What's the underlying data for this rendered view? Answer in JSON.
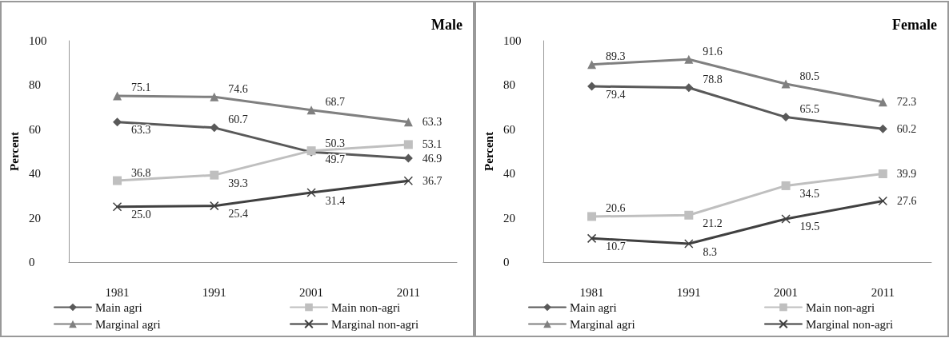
{
  "chart_data": [
    {
      "type": "line",
      "title": "Male",
      "ylabel": "Percent",
      "categories": [
        "1981",
        "1991",
        "2001",
        "2011"
      ],
      "ylim": [
        0,
        100
      ],
      "yticks": [
        0,
        20,
        40,
        60,
        80,
        100
      ],
      "grid": false,
      "legend": "bottom",
      "data_labels": true,
      "line_style": "solid",
      "series": [
        {
          "name": "Main agri",
          "color": "#595959",
          "marker": "diamond",
          "values": [
            63.3,
            60.7,
            49.7,
            46.9
          ]
        },
        {
          "name": "Main non-agri",
          "color": "#bfbfbf",
          "marker": "square",
          "values": [
            36.8,
            39.3,
            50.3,
            53.1
          ]
        },
        {
          "name": "Marginal agri",
          "color": "#808080",
          "marker": "triangle",
          "values": [
            75.1,
            74.6,
            68.7,
            63.3
          ]
        },
        {
          "name": "Marginal non-agri",
          "color": "#404040",
          "marker": "cross",
          "values": [
            25.0,
            25.4,
            31.4,
            36.7
          ],
          "value_labels": [
            "25.0",
            "25.4",
            "31.4",
            "36.7"
          ]
        }
      ]
    },
    {
      "type": "line",
      "title": "Female",
      "ylabel": "Percent",
      "categories": [
        "1981",
        "1991",
        "2001",
        "2011"
      ],
      "ylim": [
        0,
        100
      ],
      "yticks": [
        0,
        20,
        40,
        60,
        80,
        100
      ],
      "grid": false,
      "legend": "bottom",
      "data_labels": true,
      "line_style": "solid",
      "series": [
        {
          "name": "Main agri",
          "color": "#595959",
          "marker": "diamond",
          "values": [
            79.4,
            78.8,
            65.5,
            60.2
          ]
        },
        {
          "name": "Main non-agri",
          "color": "#bfbfbf",
          "marker": "square",
          "values": [
            20.6,
            21.2,
            34.5,
            39.9
          ]
        },
        {
          "name": "Marginal agri",
          "color": "#808080",
          "marker": "triangle",
          "values": [
            89.3,
            91.6,
            80.5,
            72.3
          ]
        },
        {
          "name": "Marginal non-agri",
          "color": "#404040",
          "marker": "cross",
          "values": [
            10.7,
            8.3,
            19.5,
            27.6
          ]
        }
      ]
    }
  ]
}
